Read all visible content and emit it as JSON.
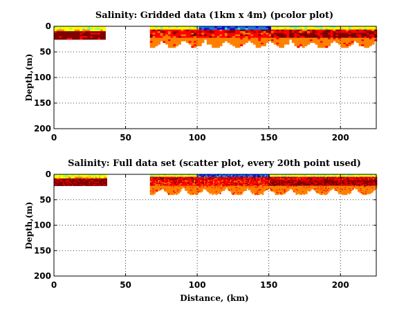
{
  "chart_data": [
    {
      "type": "heatmap",
      "title": "Salinity: Gridded data (1km x 4m) (pcolor plot)",
      "xlabel": "",
      "ylabel": "Depth,(m)",
      "xlim": [
        0,
        225
      ],
      "ylim": [
        0,
        200
      ],
      "y_reversed": true,
      "xticks": [
        "0",
        "50",
        "100",
        "150",
        "200"
      ],
      "yticks": [
        "0",
        "50",
        "100",
        "150",
        "200"
      ],
      "grid": true,
      "segments": [
        {
          "x_start": 0,
          "x_end": 36,
          "max_depth": 25,
          "profile": "short"
        },
        {
          "x_start": 67,
          "x_end": 225,
          "max_depth": 40,
          "profile": "long"
        }
      ],
      "fresh_core": {
        "x_start": 100,
        "x_end": 150,
        "depth": 6
      }
    },
    {
      "type": "scatter",
      "title": "Salinity: Full data set (scatter plot, every 20th point used)",
      "xlabel": "Distance, (km)",
      "ylabel": "Depth,(m)",
      "xlim": [
        0,
        225
      ],
      "ylim": [
        0,
        200
      ],
      "y_reversed": true,
      "xticks": [
        "0",
        "50",
        "100",
        "150",
        "200"
      ],
      "yticks": [
        "0",
        "50",
        "100",
        "150",
        "200"
      ],
      "grid": true,
      "segments": [
        {
          "x_start": 0,
          "x_end": 36,
          "max_depth": 22,
          "profile": "short"
        },
        {
          "x_start": 67,
          "x_end": 225,
          "max_depth": 40,
          "profile": "long"
        }
      ],
      "fresh_core": {
        "x_start": 100,
        "x_end": 150,
        "depth": 6
      }
    }
  ],
  "colors": {
    "jet": [
      "#00008f",
      "#0000ff",
      "#0080ff",
      "#00ffff",
      "#80ff80",
      "#ffff00",
      "#ff8000",
      "#ff0000",
      "#800000"
    ]
  }
}
